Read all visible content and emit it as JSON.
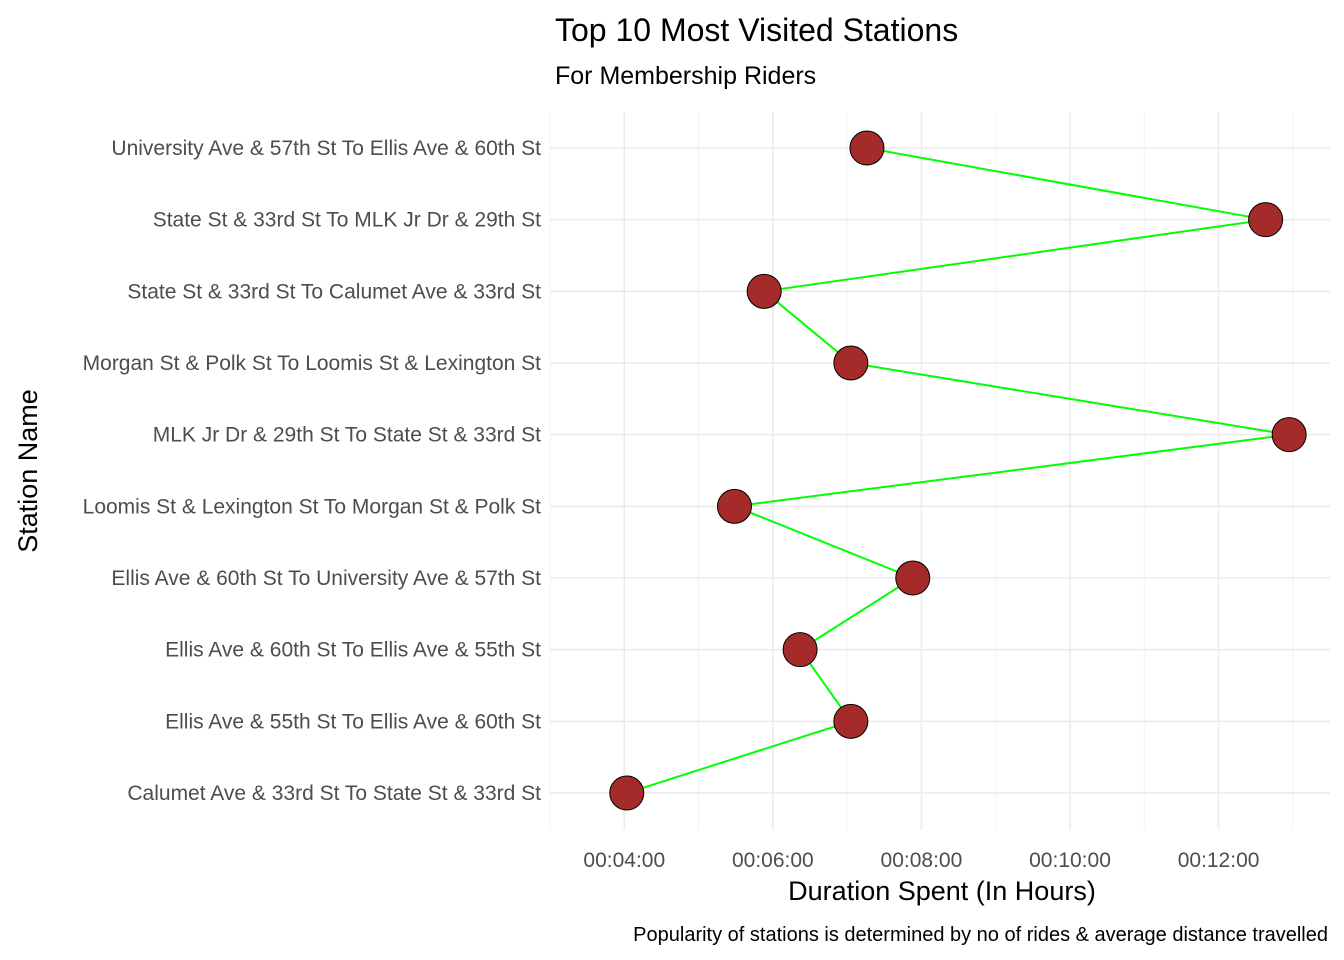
{
  "chart_data": {
    "type": "line",
    "title": "Top 10 Most Visited Stations",
    "subtitle": "For Membership Riders",
    "xlabel": "Duration Spent (In Hours)",
    "ylabel": "Station Name",
    "caption": "Popularity of stations is determined by no of rides & average distance travelled",
    "xlim": [
      "00:03:00",
      "00:13:30"
    ],
    "x_ticks": [
      "00:04:00",
      "00:06:00",
      "00:08:00",
      "00:10:00",
      "00:12:00"
    ],
    "categories": [
      "Calumet Ave & 33rd St To State St & 33rd St",
      "Ellis Ave & 55th St To Ellis Ave & 60th St",
      "Ellis Ave & 60th St To Ellis Ave & 55th St",
      "Ellis Ave & 60th St To University Ave & 57th St",
      "Loomis St & Lexington St To Morgan St & Polk St",
      "MLK Jr Dr & 29th St To State St & 33rd St",
      "Morgan St & Polk St To Loomis St & Lexington St",
      "State St & 33rd St To Calumet Ave & 33rd St",
      "State St & 33rd St To MLK Jr Dr & 29th St",
      "University Ave & 57th St To Ellis Ave & 60th St"
    ],
    "series": [
      {
        "values": [
          "00:04:02",
          "00:07:03",
          "00:06:22",
          "00:07:53",
          "00:05:29",
          "00:12:57",
          "00:07:03",
          "00:05:53",
          "00:12:38",
          "00:07:16"
        ]
      }
    ],
    "line_color": "#00ff00",
    "point_color": "#a52a2a",
    "grid": true,
    "legend": "none"
  }
}
